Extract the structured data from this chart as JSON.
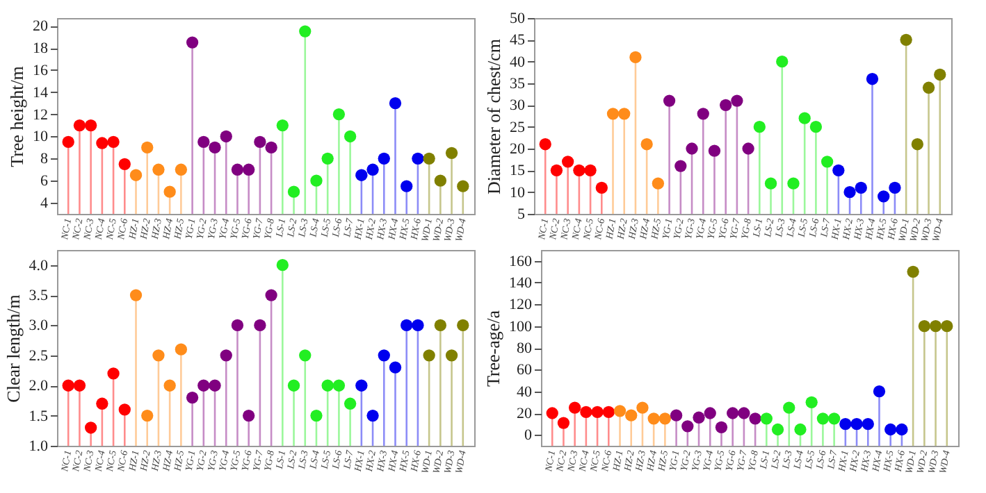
{
  "chart_data": [
    {
      "type": "lollipop",
      "ylabel": "Tree height/m",
      "categories": [
        "NC-1",
        "NC-2",
        "NC-3",
        "NC-4",
        "NC-5",
        "NC-6",
        "HZ-1",
        "HZ-2",
        "HZ-3",
        "HZ-4",
        "HZ-5",
        "YG-1",
        "YG-2",
        "YG-3",
        "YG-4",
        "YG-5",
        "YG-6",
        "YG-7",
        "YG-8",
        "LS-1",
        "LS-2",
        "LS-3",
        "LS-4",
        "LS-5",
        "LS-6",
        "LS-7",
        "HX-1",
        "HX-2",
        "HX-3",
        "HX-4",
        "HX-5",
        "HX-6",
        "WD-1",
        "WD-2",
        "WD-3",
        "WD-4"
      ],
      "values": [
        9.5,
        11,
        11,
        9.4,
        9.5,
        7.5,
        6.5,
        9,
        7,
        5,
        7,
        18.5,
        9.5,
        9,
        10,
        7,
        7,
        9.5,
        9,
        11,
        5,
        19.5,
        6,
        8,
        12,
        10,
        6.5,
        7,
        8,
        13,
        5.5,
        8,
        8,
        6,
        8.5,
        5.5
      ],
      "colors": [
        "#ff0000",
        "#ff0000",
        "#ff0000",
        "#ff0000",
        "#ff0000",
        "#ff0000",
        "#ff8c1a",
        "#ff8c1a",
        "#ff8c1a",
        "#ff8c1a",
        "#ff8c1a",
        "#800080",
        "#800080",
        "#800080",
        "#800080",
        "#800080",
        "#800080",
        "#800080",
        "#800080",
        "#22ee22",
        "#22ee22",
        "#22ee22",
        "#22ee22",
        "#22ee22",
        "#22ee22",
        "#22ee22",
        "#0000ee",
        "#0000ee",
        "#0000ee",
        "#0000ee",
        "#0000ee",
        "#0000ee",
        "#808000",
        "#808000",
        "#808000",
        "#808000"
      ],
      "ylim": [
        3,
        20.7
      ],
      "yticks": [
        4,
        6,
        8,
        10,
        12,
        14,
        16,
        18,
        20
      ],
      "marker": "circle"
    },
    {
      "type": "lollipop",
      "ylabel": "Diameter of chest/cm",
      "categories": [
        "NC-1",
        "NC-2",
        "NC-3",
        "NC-4",
        "NC-5",
        "NC-6",
        "HZ-1",
        "HZ-2",
        "HZ-3",
        "HZ-4",
        "HZ-5",
        "YG-1",
        "YG-2",
        "YG-3",
        "YG-4",
        "YG-5",
        "YG-6",
        "YG-7",
        "YG-8",
        "LS-1",
        "LS-2",
        "LS-3",
        "LS-4",
        "LS-5",
        "LS-6",
        "LS-7",
        "HX-1",
        "HX-2",
        "HX-3",
        "HX-4",
        "HX-5",
        "HX-6",
        "WD-1",
        "WD-2",
        "WD-3",
        "WD-4"
      ],
      "values": [
        21,
        15,
        17,
        15,
        15,
        11,
        28,
        28,
        41,
        21,
        12,
        31,
        16,
        20,
        28,
        19.5,
        30,
        31,
        20,
        25,
        12,
        40,
        12,
        27,
        25,
        17,
        15,
        10,
        11,
        36,
        9,
        11,
        45,
        21,
        34,
        37
      ],
      "colors": [
        "#ff0000",
        "#ff0000",
        "#ff0000",
        "#ff0000",
        "#ff0000",
        "#ff0000",
        "#ff8c1a",
        "#ff8c1a",
        "#ff8c1a",
        "#ff8c1a",
        "#ff8c1a",
        "#800080",
        "#800080",
        "#800080",
        "#800080",
        "#800080",
        "#800080",
        "#800080",
        "#800080",
        "#22ee22",
        "#22ee22",
        "#22ee22",
        "#22ee22",
        "#22ee22",
        "#22ee22",
        "#22ee22",
        "#0000ee",
        "#0000ee",
        "#0000ee",
        "#0000ee",
        "#0000ee",
        "#0000ee",
        "#808000",
        "#808000",
        "#808000",
        "#808000"
      ],
      "ylim": [
        5,
        50
      ],
      "yticks": [
        5,
        10,
        15,
        20,
        25,
        30,
        35,
        40,
        45,
        50
      ],
      "marker": "circle"
    },
    {
      "type": "lollipop",
      "ylabel": "Clear length/m",
      "categories": [
        "NC-1",
        "NC-2",
        "NC-3",
        "NC-4",
        "NC-5",
        "NC-6",
        "HZ-1",
        "HZ-2",
        "HZ-3",
        "HZ-4",
        "HZ-5",
        "YG-1",
        "YG-2",
        "YG-3",
        "YG-4",
        "YG-5",
        "YG-6",
        "YG-7",
        "YG-8",
        "LS-1",
        "LS-2",
        "LS-3",
        "LS-4",
        "LS-5",
        "LS-6",
        "LS-7",
        "HX-1",
        "HX-2",
        "HX-3",
        "HX-4",
        "HX-5",
        "HX-6",
        "WD-1",
        "WD-2",
        "WD-3",
        "WD-4"
      ],
      "values": [
        2.0,
        2.0,
        1.3,
        1.7,
        2.2,
        1.6,
        3.5,
        1.5,
        2.5,
        2.0,
        2.6,
        1.8,
        2.0,
        2.0,
        2.5,
        3.0,
        1.5,
        3.0,
        3.5,
        4.0,
        2.0,
        2.5,
        1.5,
        2.0,
        2.0,
        1.7,
        2.0,
        1.5,
        2.5,
        2.3,
        3.0,
        3.0,
        2.5,
        3.0,
        2.5,
        3.0
      ],
      "colors": [
        "#ff0000",
        "#ff0000",
        "#ff0000",
        "#ff0000",
        "#ff0000",
        "#ff0000",
        "#ff8c1a",
        "#ff8c1a",
        "#ff8c1a",
        "#ff8c1a",
        "#ff8c1a",
        "#800080",
        "#800080",
        "#800080",
        "#800080",
        "#800080",
        "#800080",
        "#800080",
        "#800080",
        "#22ee22",
        "#22ee22",
        "#22ee22",
        "#22ee22",
        "#22ee22",
        "#22ee22",
        "#22ee22",
        "#0000ee",
        "#0000ee",
        "#0000ee",
        "#0000ee",
        "#0000ee",
        "#0000ee",
        "#808000",
        "#808000",
        "#808000",
        "#808000"
      ],
      "ylim": [
        1,
        4.25
      ],
      "yticks": [
        {
          "value": 1,
          "label": "1.0"
        },
        {
          "value": 1.5,
          "label": "1.5"
        },
        {
          "value": 2,
          "label": "2.0"
        },
        {
          "value": 2.5,
          "label": "2.5"
        },
        {
          "value": 3,
          "label": "3.0"
        },
        {
          "value": 3.5,
          "label": "3.5"
        },
        {
          "value": 4,
          "label": "4.0"
        }
      ],
      "marker": "circle"
    },
    {
      "type": "lollipop",
      "ylabel": "Tree-age/a",
      "categories": [
        "NC-1",
        "NC-2",
        "NC-3",
        "NC-4",
        "NC-5",
        "NC-6",
        "HZ-1",
        "HZ-2",
        "HZ-3",
        "HZ-4",
        "HZ-5",
        "YG-1",
        "YG-2",
        "YG-3",
        "YG-4",
        "YG-5",
        "YG-6",
        "YG-7",
        "YG-8",
        "LS-1",
        "LS-2",
        "LS-3",
        "LS-4",
        "LS-5",
        "LS-6",
        "LS-7",
        "HX-1",
        "HX-2",
        "HX-3",
        "HX-4",
        "HX-5",
        "HX-6",
        "WD-1",
        "WD-2",
        "WD-3",
        "WD-4"
      ],
      "values": [
        20,
        11,
        25,
        21,
        21,
        21,
        22,
        18,
        25,
        15,
        15,
        18,
        8,
        16,
        20,
        7,
        20,
        20,
        15,
        15,
        5,
        25,
        5,
        30,
        15,
        15,
        10,
        10,
        10,
        40,
        5,
        5,
        150,
        100,
        100,
        100
      ],
      "colors": [
        "#ff0000",
        "#ff0000",
        "#ff0000",
        "#ff0000",
        "#ff0000",
        "#ff0000",
        "#ff8c1a",
        "#ff8c1a",
        "#ff8c1a",
        "#ff8c1a",
        "#ff8c1a",
        "#800080",
        "#800080",
        "#800080",
        "#800080",
        "#800080",
        "#800080",
        "#800080",
        "#800080",
        "#22ee22",
        "#22ee22",
        "#22ee22",
        "#22ee22",
        "#22ee22",
        "#22ee22",
        "#22ee22",
        "#0000ee",
        "#0000ee",
        "#0000ee",
        "#0000ee",
        "#0000ee",
        "#0000ee",
        "#808000",
        "#808000",
        "#808000",
        "#808000"
      ],
      "ylim": [
        -10,
        170
      ],
      "yticks": [
        0,
        20,
        40,
        60,
        80,
        100,
        120,
        140,
        160
      ],
      "marker": "circle"
    }
  ]
}
